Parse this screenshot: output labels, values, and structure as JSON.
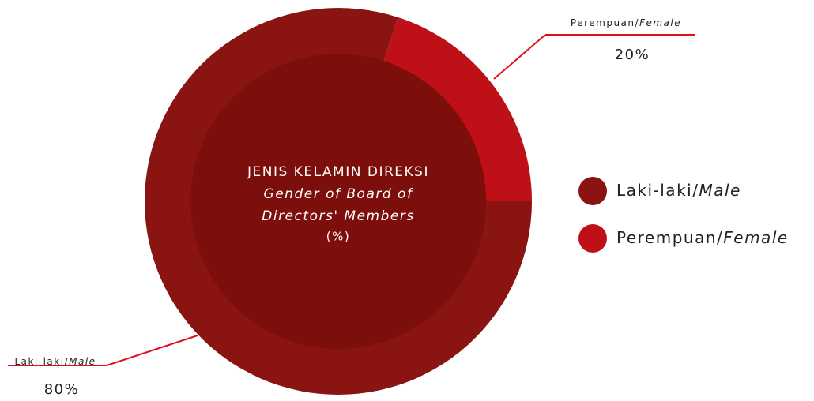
{
  "chart_data": {
    "type": "donut",
    "title": "JENIS KELAMIN DIREKSI",
    "subtitle": [
      "Gender of Board of",
      "Directors' Members"
    ],
    "unit": "(%)",
    "categories": [
      [
        "Laki-laki/",
        "Male"
      ],
      [
        "Perempuan/",
        "Female"
      ]
    ],
    "values": [
      80,
      20
    ],
    "value_labels": [
      "80%",
      "20%"
    ],
    "colors": [
      "#8a1411",
      "#bf0f17"
    ],
    "legend": "right"
  }
}
